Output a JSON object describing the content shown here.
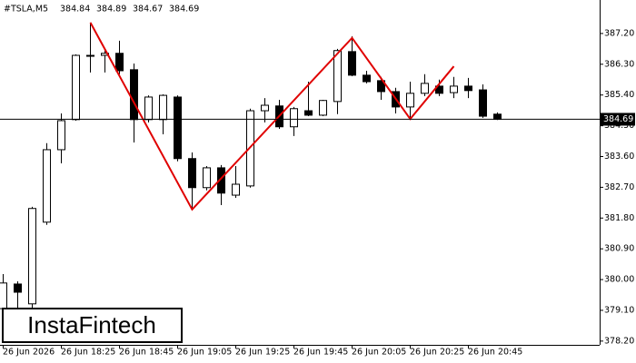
{
  "chart_data": {
    "type": "candlestick",
    "title": "#TSLA,M5",
    "categories": [
      "26 Jun 2026",
      null,
      null,
      null,
      "26 Jun 18:25",
      null,
      null,
      null,
      "26 Jun 18:45",
      null,
      null,
      null,
      "26 Jun 19:05",
      null,
      null,
      null,
      "26 Jun 19:25",
      null,
      null,
      null,
      "26 Jun 19:45",
      null,
      null,
      null,
      "26 Jun 20:05",
      null,
      null,
      null,
      "26 Jun 20:25",
      null,
      null,
      null,
      "26 Jun 20:45",
      null,
      null
    ],
    "open": [
      379.15,
      379.87,
      379.29,
      381.68,
      383.8,
      384.68,
      386.54,
      386.56,
      386.62,
      386.14,
      384.68,
      384.68,
      385.34,
      383.54,
      382.69,
      383.27,
      382.47,
      382.74,
      384.94,
      385.08,
      384.47,
      384.94,
      384.81,
      385.21,
      386.67,
      385.98,
      385.82,
      385.5,
      385.05,
      385.45,
      385.66,
      385.47,
      385.66,
      385.55,
      384.84
    ],
    "high": [
      380.16,
      379.95,
      382.13,
      383.99,
      384.86,
      386.59,
      387.52,
      386.72,
      386.99,
      386.32,
      385.39,
      385.42,
      385.39,
      383.72,
      383.32,
      383.35,
      383.32,
      385.0,
      385.31,
      385.26,
      385.05,
      385.79,
      385.26,
      386.75,
      387.12,
      386.11,
      385.93,
      385.61,
      385.79,
      386.01,
      385.85,
      385.93,
      385.9,
      385.71,
      384.89
    ],
    "low": [
      379.02,
      379.15,
      379.02,
      381.6,
      383.4,
      384.65,
      386.06,
      386.06,
      386.01,
      384.01,
      384.6,
      384.25,
      383.46,
      382.08,
      382.61,
      382.18,
      382.39,
      382.69,
      384.6,
      384.41,
      384.2,
      384.78,
      384.78,
      384.84,
      385.95,
      385.74,
      385.26,
      384.86,
      384.73,
      385.37,
      385.37,
      385.31,
      385.31,
      384.73,
      384.67
    ],
    "close": [
      379.9,
      379.63,
      382.08,
      383.8,
      384.65,
      386.56,
      386.56,
      386.62,
      386.11,
      384.68,
      385.34,
      385.39,
      383.54,
      382.69,
      383.27,
      382.53,
      382.79,
      384.94,
      385.1,
      384.47,
      385.0,
      384.81,
      385.24,
      386.7,
      385.98,
      385.79,
      385.5,
      385.05,
      385.45,
      385.74,
      385.45,
      385.66,
      385.53,
      384.78,
      384.69
    ],
    "up_color": "#ffffff",
    "down_color": "#000000",
    "ylim": [
      378.09,
      388.18
    ],
    "yticks": [
      {
        "value": 387.2,
        "label": "387.20"
      },
      {
        "value": 386.3,
        "label": "386.30"
      },
      {
        "value": 385.4,
        "label": "385.40"
      },
      {
        "value": 384.5,
        "label": "384.50"
      },
      {
        "value": 383.6,
        "label": "383.60"
      },
      {
        "value": 382.7,
        "label": "382.70"
      },
      {
        "value": 381.8,
        "label": "381.80"
      },
      {
        "value": 380.9,
        "label": "380.90"
      },
      {
        "value": 380.0,
        "label": "380.00"
      },
      {
        "value": 379.1,
        "label": "379.10"
      },
      {
        "value": 378.2,
        "label": "378.20"
      }
    ],
    "pattern": {
      "color": "#e00000",
      "index": [
        6,
        13,
        24,
        28,
        31
      ],
      "price": [
        387.52,
        382.05,
        387.07,
        384.7,
        386.24
      ]
    },
    "watermark": "InstaFintech"
  }
}
